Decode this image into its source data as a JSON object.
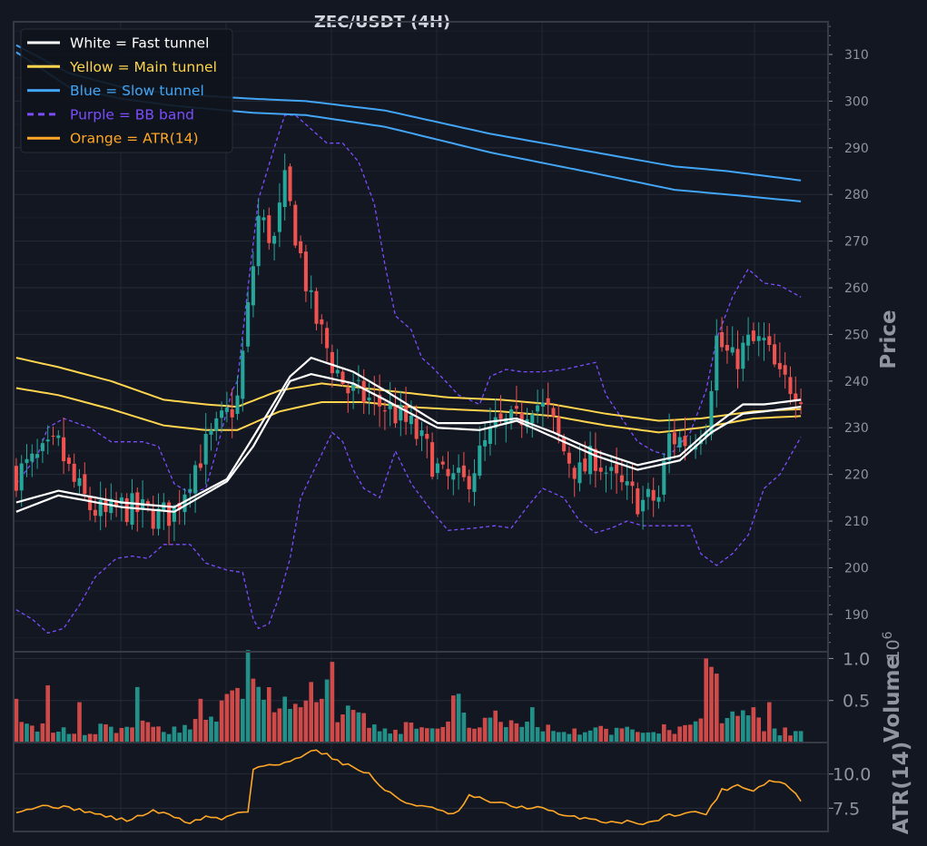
{
  "chart_data": {
    "type": "candlestick",
    "title": "ZEC/USDT (4H)",
    "colors": {
      "background": "#131722",
      "up": "#26a69a",
      "down": "#ef5350",
      "fast": "#ffffff",
      "main": "#ffd54f",
      "slow": "#42a5f5",
      "bb": "#7c4dff",
      "atr": "#ffa726"
    },
    "price_panel": {
      "ylabel": "Price",
      "ylim": [
        182,
        317
      ],
      "yticks": [
        "190",
        "200",
        "210",
        "220",
        "230",
        "240",
        "250",
        "260",
        "270",
        "280",
        "290",
        "300",
        "310"
      ]
    },
    "volume_panel": {
      "ylabel": "Volume",
      "exponent_label": "10",
      "exponent_power": "6",
      "ylim": [
        0,
        1.08
      ],
      "yticks": [
        "0.5",
        "1.0"
      ]
    },
    "atr_panel": {
      "ylabel": "ATR(14)",
      "ylim": [
        5.8,
        12.3
      ],
      "yticks": [
        "7.5",
        "10.0"
      ]
    },
    "legend": {
      "position": "top-left",
      "entries": [
        {
          "label": "White = Fast tunnel",
          "color": "#ffffff",
          "dash": false
        },
        {
          "label": "Yellow = Main tunnel",
          "color": "#ffd54f",
          "dash": false
        },
        {
          "label": "Blue = Slow tunnel",
          "color": "#42a5f5",
          "dash": false
        },
        {
          "label": "Purple = BB band",
          "color": "#7c4dff",
          "dash": true
        },
        {
          "label": "Orange = ATR(14)",
          "color": "#ffa726",
          "dash": false
        }
      ]
    },
    "n_bars": 150,
    "close_anchors": [
      [
        0,
        220
      ],
      [
        4,
        223
      ],
      [
        8,
        226
      ],
      [
        11,
        218
      ],
      [
        14,
        213
      ],
      [
        17,
        211
      ],
      [
        20,
        213
      ],
      [
        24,
        212
      ],
      [
        27,
        211
      ],
      [
        30,
        212
      ],
      [
        33,
        220
      ],
      [
        36,
        226
      ],
      [
        39,
        231
      ],
      [
        42,
        236
      ],
      [
        44,
        255
      ],
      [
        46,
        275
      ],
      [
        49,
        270
      ],
      [
        51,
        282
      ],
      [
        53,
        272
      ],
      [
        56,
        256
      ],
      [
        58,
        250
      ],
      [
        60,
        244
      ],
      [
        63,
        238
      ],
      [
        67,
        236
      ],
      [
        71,
        234
      ],
      [
        75,
        230
      ],
      [
        78,
        225
      ],
      [
        81,
        219
      ],
      [
        85,
        218
      ],
      [
        88,
        224
      ],
      [
        91,
        230
      ],
      [
        95,
        231
      ],
      [
        98,
        236
      ],
      [
        101,
        233
      ],
      [
        104,
        225
      ],
      [
        107,
        220
      ],
      [
        110,
        224
      ],
      [
        113,
        219
      ],
      [
        116,
        216
      ],
      [
        119,
        214
      ],
      [
        122,
        215
      ],
      [
        124,
        228
      ],
      [
        128,
        227
      ],
      [
        131,
        232
      ],
      [
        133,
        249
      ],
      [
        136,
        244
      ],
      [
        139,
        248
      ],
      [
        142,
        248
      ],
      [
        145,
        240
      ],
      [
        148,
        239
      ],
      [
        149,
        238
      ]
    ],
    "fast_upper": [
      [
        0,
        214
      ],
      [
        8,
        216.5
      ],
      [
        20,
        214
      ],
      [
        30,
        213
      ],
      [
        40,
        219
      ],
      [
        45,
        228
      ],
      [
        52,
        241
      ],
      [
        56,
        245
      ],
      [
        64,
        242
      ],
      [
        70,
        238
      ],
      [
        80,
        231
      ],
      [
        88,
        231
      ],
      [
        95,
        232
      ],
      [
        102,
        229
      ],
      [
        110,
        225
      ],
      [
        118,
        222
      ],
      [
        126,
        224
      ],
      [
        132,
        230
      ],
      [
        138,
        235
      ],
      [
        142,
        235
      ],
      [
        149,
        236
      ]
    ],
    "fast_lower": [
      [
        0,
        212
      ],
      [
        8,
        215.5
      ],
      [
        20,
        213
      ],
      [
        30,
        212
      ],
      [
        40,
        218.5
      ],
      [
        45,
        226
      ],
      [
        52,
        240
      ],
      [
        56,
        241.5
      ],
      [
        64,
        239.5
      ],
      [
        70,
        236
      ],
      [
        80,
        230
      ],
      [
        88,
        229.5
      ],
      [
        95,
        231.5
      ],
      [
        102,
        228
      ],
      [
        110,
        224
      ],
      [
        118,
        221
      ],
      [
        126,
        223
      ],
      [
        132,
        229
      ],
      [
        138,
        233
      ],
      [
        142,
        233.5
      ],
      [
        149,
        234.5
      ]
    ],
    "main_upper": [
      [
        0,
        245
      ],
      [
        8,
        243
      ],
      [
        18,
        240
      ],
      [
        28,
        236
      ],
      [
        36,
        235
      ],
      [
        42,
        234.5
      ],
      [
        50,
        238
      ],
      [
        58,
        239.5
      ],
      [
        66,
        238.5
      ],
      [
        74,
        237.5
      ],
      [
        82,
        236.5
      ],
      [
        92,
        236
      ],
      [
        102,
        235
      ],
      [
        112,
        233
      ],
      [
        122,
        231.5
      ],
      [
        130,
        232
      ],
      [
        140,
        233.5
      ],
      [
        149,
        234
      ]
    ],
    "main_lower": [
      [
        0,
        238.5
      ],
      [
        8,
        237
      ],
      [
        18,
        234
      ],
      [
        28,
        230.5
      ],
      [
        36,
        229.5
      ],
      [
        42,
        229.5
      ],
      [
        50,
        233.5
      ],
      [
        58,
        235.5
      ],
      [
        66,
        235.5
      ],
      [
        74,
        234.5
      ],
      [
        82,
        234
      ],
      [
        92,
        233.5
      ],
      [
        102,
        232.5
      ],
      [
        112,
        230.5
      ],
      [
        122,
        229
      ],
      [
        130,
        230
      ],
      [
        140,
        232
      ],
      [
        149,
        232.5
      ]
    ],
    "slow_upper": [
      [
        0,
        312
      ],
      [
        10,
        306
      ],
      [
        20,
        303
      ],
      [
        30,
        301.5
      ],
      [
        45,
        300.5
      ],
      [
        55,
        300
      ],
      [
        70,
        298
      ],
      [
        90,
        293
      ],
      [
        110,
        289
      ],
      [
        125,
        286
      ],
      [
        135,
        285
      ],
      [
        149,
        283
      ]
    ],
    "slow_lower": [
      [
        0,
        310.5
      ],
      [
        10,
        303
      ],
      [
        20,
        300.5
      ],
      [
        30,
        299
      ],
      [
        45,
        297.5
      ],
      [
        55,
        297
      ],
      [
        70,
        294.5
      ],
      [
        90,
        289
      ],
      [
        110,
        284.5
      ],
      [
        125,
        281
      ],
      [
        135,
        280
      ],
      [
        149,
        278.5
      ]
    ],
    "bb_upper": [
      [
        0,
        218
      ],
      [
        4,
        224
      ],
      [
        6,
        230
      ],
      [
        9,
        232
      ],
      [
        14,
        230
      ],
      [
        18,
        227
      ],
      [
        24,
        227
      ],
      [
        27,
        226
      ],
      [
        30,
        218
      ],
      [
        33,
        216
      ],
      [
        36,
        217
      ],
      [
        38,
        225
      ],
      [
        41,
        238
      ],
      [
        42,
        240
      ],
      [
        44,
        260
      ],
      [
        46,
        279
      ],
      [
        49,
        290
      ],
      [
        51,
        297
      ],
      [
        53,
        297
      ],
      [
        57,
        293
      ],
      [
        59,
        291
      ],
      [
        62,
        291
      ],
      [
        65,
        287
      ],
      [
        68,
        278
      ],
      [
        70,
        265
      ],
      [
        72,
        254
      ],
      [
        75,
        251
      ],
      [
        77,
        245
      ],
      [
        79,
        243
      ],
      [
        84,
        237
      ],
      [
        88,
        235
      ],
      [
        90,
        241
      ],
      [
        93,
        242.5
      ],
      [
        96,
        242
      ],
      [
        100,
        242
      ],
      [
        104,
        242.5
      ],
      [
        106,
        243
      ],
      [
        110,
        244
      ],
      [
        112,
        237
      ],
      [
        115,
        232
      ],
      [
        118,
        227
      ],
      [
        121,
        225
      ],
      [
        124,
        224
      ],
      [
        128,
        229
      ],
      [
        131,
        238
      ],
      [
        133,
        249
      ],
      [
        136,
        258
      ],
      [
        139,
        264
      ],
      [
        142,
        261
      ],
      [
        145,
        260.5
      ],
      [
        149,
        258
      ]
    ],
    "bb_lower": [
      [
        0,
        191
      ],
      [
        3,
        189
      ],
      [
        6,
        186
      ],
      [
        9,
        187
      ],
      [
        12,
        192
      ],
      [
        15,
        198
      ],
      [
        19,
        202
      ],
      [
        22,
        202.5
      ],
      [
        25,
        202
      ],
      [
        28,
        205
      ],
      [
        33,
        205
      ],
      [
        36,
        201
      ],
      [
        40,
        199.5
      ],
      [
        43,
        199
      ],
      [
        45,
        189
      ],
      [
        46,
        187
      ],
      [
        48,
        188
      ],
      [
        50,
        194
      ],
      [
        52,
        202
      ],
      [
        54,
        215
      ],
      [
        57,
        222
      ],
      [
        60,
        229
      ],
      [
        62,
        227
      ],
      [
        64,
        221
      ],
      [
        66,
        217
      ],
      [
        69,
        215
      ],
      [
        72,
        225
      ],
      [
        75,
        218
      ],
      [
        79,
        212
      ],
      [
        82,
        208
      ],
      [
        87,
        208.5
      ],
      [
        91,
        209
      ],
      [
        94,
        208.5
      ],
      [
        97,
        213
      ],
      [
        100,
        217
      ],
      [
        104,
        215
      ],
      [
        107,
        210
      ],
      [
        110,
        207.5
      ],
      [
        113,
        208.5
      ],
      [
        116,
        210
      ],
      [
        119,
        209
      ],
      [
        124,
        209
      ],
      [
        128,
        209
      ],
      [
        130,
        203
      ],
      [
        133,
        200.5
      ],
      [
        136,
        203
      ],
      [
        139,
        207
      ],
      [
        142,
        217
      ],
      [
        145,
        220
      ],
      [
        149,
        228
      ]
    ],
    "volume_anchors": [
      [
        0,
        0.2
      ],
      [
        10,
        0.12
      ],
      [
        20,
        0.18
      ],
      [
        33,
        0.18
      ],
      [
        38,
        0.36
      ],
      [
        42,
        0.46
      ],
      [
        44,
        0.62
      ],
      [
        47,
        0.5
      ],
      [
        52,
        0.6
      ],
      [
        56,
        0.42
      ],
      [
        60,
        0.3
      ],
      [
        65,
        0.28
      ],
      [
        70,
        0.18
      ],
      [
        80,
        0.16
      ],
      [
        88,
        0.3
      ],
      [
        95,
        0.2
      ],
      [
        105,
        0.16
      ],
      [
        115,
        0.14
      ],
      [
        124,
        0.16
      ],
      [
        128,
        0.2
      ],
      [
        131,
        0.5
      ],
      [
        134,
        0.4
      ],
      [
        140,
        0.22
      ],
      [
        149,
        0.1
      ]
    ],
    "volume_spikes": [
      [
        0,
        0.52
      ],
      [
        6,
        0.68
      ],
      [
        12,
        0.48
      ],
      [
        23,
        0.66
      ],
      [
        35,
        0.52
      ],
      [
        39,
        0.5
      ],
      [
        41,
        0.62
      ],
      [
        43,
        0.52
      ],
      [
        44,
        1.1
      ],
      [
        45,
        0.76
      ],
      [
        49,
        0.36
      ],
      [
        52,
        0.4
      ],
      [
        53,
        0.46
      ],
      [
        54,
        0.42
      ],
      [
        56,
        0.72
      ],
      [
        57,
        0.48
      ],
      [
        58,
        0.52
      ],
      [
        59,
        0.75
      ],
      [
        60,
        0.96
      ],
      [
        63,
        0.44
      ],
      [
        83,
        0.56
      ],
      [
        84,
        0.58
      ],
      [
        91,
        0.38
      ],
      [
        98,
        0.42
      ],
      [
        131,
        1.0
      ],
      [
        132,
        0.9
      ],
      [
        133,
        0.82
      ],
      [
        140,
        0.42
      ],
      [
        143,
        0.48
      ]
    ],
    "atr_anchors": [
      [
        0,
        7.3
      ],
      [
        6,
        7.7
      ],
      [
        12,
        7.4
      ],
      [
        16,
        7.0
      ],
      [
        21,
        6.6
      ],
      [
        26,
        7.3
      ],
      [
        30,
        6.9
      ],
      [
        33,
        6.4
      ],
      [
        36,
        6.9
      ],
      [
        39,
        6.7
      ],
      [
        42,
        7.2
      ],
      [
        44,
        7.3
      ],
      [
        45,
        10.4
      ],
      [
        48,
        10.7
      ],
      [
        50,
        10.6
      ],
      [
        54,
        11.3
      ],
      [
        56,
        11.8
      ],
      [
        59,
        11.4
      ],
      [
        62,
        10.8
      ],
      [
        67,
        10.0
      ],
      [
        70,
        8.8
      ],
      [
        74,
        7.9
      ],
      [
        78,
        7.6
      ],
      [
        82,
        7.1
      ],
      [
        84,
        7.2
      ],
      [
        86,
        8.4
      ],
      [
        90,
        8.0
      ],
      [
        95,
        7.6
      ],
      [
        100,
        7.5
      ],
      [
        104,
        6.9
      ],
      [
        108,
        6.8
      ],
      [
        112,
        6.5
      ],
      [
        116,
        6.5
      ],
      [
        120,
        6.4
      ],
      [
        124,
        7.0
      ],
      [
        128,
        7.2
      ],
      [
        131,
        7.1
      ],
      [
        134,
        8.8
      ],
      [
        137,
        9.2
      ],
      [
        140,
        8.8
      ],
      [
        143,
        9.5
      ],
      [
        146,
        9.3
      ],
      [
        149,
        8.1
      ]
    ]
  }
}
